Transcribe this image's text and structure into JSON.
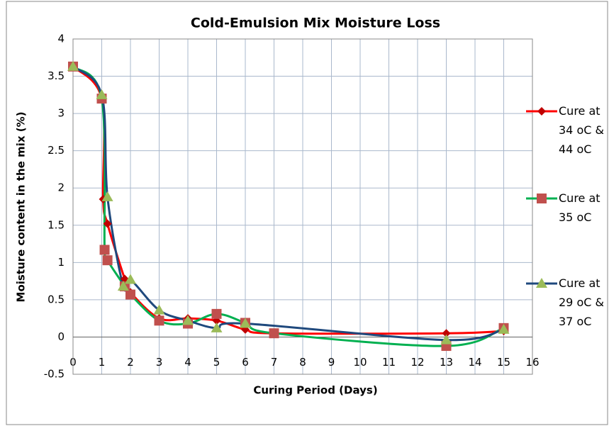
{
  "chart_data": {
    "type": "line",
    "title": "Cold-Emulsion Mix Moisture Loss",
    "xlabel": "Curing Period (Days)",
    "ylabel": "Moisture content in the mix (%)",
    "xlim": [
      0,
      16
    ],
    "xticks": [
      0,
      1,
      2,
      3,
      4,
      5,
      6,
      7,
      8,
      9,
      10,
      11,
      12,
      13,
      14,
      15,
      16
    ],
    "ylim": [
      -0.5,
      4
    ],
    "yticks": [
      -0.5,
      0,
      0.5,
      1,
      1.5,
      2,
      2.5,
      3,
      3.5,
      4
    ],
    "grid": true,
    "smooth": true,
    "legend": "right",
    "series": [
      {
        "name": "Cure at 34 oC & 44 oC",
        "color": "#ff0000",
        "marker": "diamond",
        "marker_color": "#c00000",
        "x": [
          0,
          1,
          1.05,
          1.2,
          1.8,
          2,
          3,
          4,
          5,
          6,
          7,
          13,
          15
        ],
        "values": [
          3.63,
          3.2,
          1.85,
          1.52,
          0.78,
          0.6,
          0.25,
          0.25,
          0.22,
          0.1,
          0.05,
          0.05,
          0.08
        ]
      },
      {
        "name": "Cure at 35 oC",
        "color": "#00b050",
        "marker": "square",
        "marker_color": "#c0504d",
        "x": [
          0,
          1,
          1.1,
          1.2,
          1.8,
          2,
          3,
          4,
          5,
          6,
          7,
          13,
          15
        ],
        "values": [
          3.63,
          3.2,
          1.17,
          1.03,
          0.68,
          0.57,
          0.22,
          0.18,
          0.31,
          0.19,
          0.05,
          -0.12,
          0.12
        ]
      },
      {
        "name": "Cure at 29 oC & 37 oC",
        "color": "#1f497d",
        "marker": "triangle",
        "marker_color": "#9bbb59",
        "x": [
          0,
          1,
          1.2,
          1.75,
          2,
          3,
          4,
          5,
          6,
          13,
          15
        ],
        "values": [
          3.63,
          3.25,
          1.88,
          0.68,
          0.77,
          0.36,
          0.22,
          0.12,
          0.18,
          -0.04,
          0.1
        ]
      }
    ]
  }
}
